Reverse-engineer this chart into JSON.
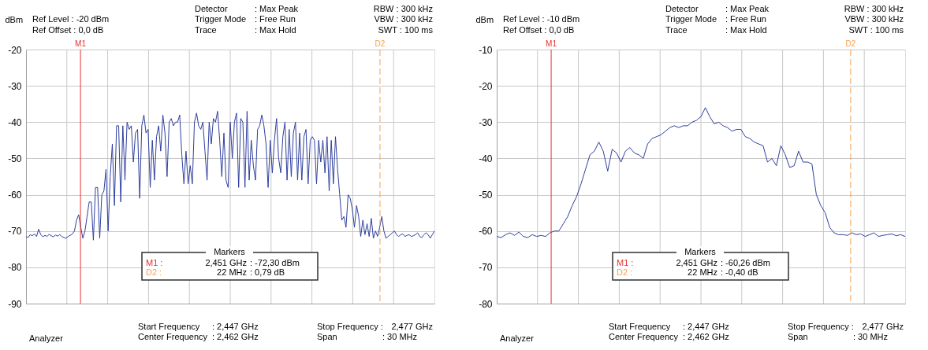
{
  "chart_data": [
    {
      "type": "line",
      "ylabel": "dBm",
      "ylim": [
        -90,
        -20
      ],
      "yticks": [
        -90,
        -80,
        -70,
        -60,
        -50,
        -40,
        -30,
        -20
      ],
      "grid": true,
      "tick_labels": "y",
      "line_style": "solid",
      "marker": "none",
      "categories": [
        null,
        null,
        null,
        null,
        null,
        null,
        null,
        null,
        null,
        null,
        null,
        null,
        null,
        null,
        null,
        null,
        null,
        null,
        null,
        null,
        null,
        null,
        null,
        null,
        null,
        null,
        null,
        null,
        null,
        null,
        null,
        null,
        null,
        null,
        null,
        null,
        null,
        null,
        null,
        null,
        null,
        null,
        null,
        null,
        null,
        null,
        null,
        null,
        null,
        null,
        null,
        null,
        null,
        null,
        null,
        null,
        null,
        null,
        null,
        null,
        null,
        null,
        null,
        null,
        null,
        null,
        null,
        null,
        null,
        null,
        null,
        null,
        null,
        null,
        null,
        null,
        null,
        null,
        null,
        null,
        null,
        null,
        null,
        null,
        null,
        null,
        null,
        null,
        null,
        null,
        null,
        null,
        null,
        null,
        null,
        null,
        null,
        null,
        null,
        null,
        null,
        null,
        null,
        null,
        null,
        null,
        null,
        null,
        null,
        null,
        null,
        null,
        null,
        null,
        null,
        null,
        null,
        null,
        null,
        null,
        null,
        null,
        null,
        null,
        null,
        null,
        null,
        null,
        null,
        null,
        null,
        null,
        null,
        null,
        null,
        null,
        null,
        null,
        null,
        null,
        null,
        null,
        null,
        null,
        null,
        null,
        null,
        null,
        null,
        null,
        null,
        null,
        null,
        null,
        null,
        null,
        null,
        null,
        null,
        null,
        null,
        null,
        null,
        null,
        null,
        null,
        null,
        null,
        null,
        null,
        null,
        null,
        null,
        null,
        null,
        null,
        null,
        null,
        null,
        null,
        null,
        null,
        null,
        null,
        null,
        null,
        null,
        null,
        null,
        null,
        null,
        null,
        null,
        null,
        null
      ],
      "series": [
        {
          "color": "#2f3f9e",
          "values": [
            -71.5,
            -71.8,
            -71,
            -71.3,
            -70.8,
            -71.5,
            -69.5,
            -71,
            -71.6,
            -71.2,
            -71.5,
            -70.9,
            -71.3,
            -71.6,
            -71.1,
            -71.4,
            -71,
            -71.5,
            -71.8,
            -72,
            -71.5,
            -71.2,
            -70.8,
            -70,
            -67,
            -65.5,
            -69,
            -72,
            -70,
            -66,
            -62,
            -62,
            -72.5,
            -58,
            -58,
            -72,
            -60,
            -59,
            -53,
            -70,
            -55,
            -46,
            -63,
            -41,
            -41,
            -62,
            -41,
            -56,
            -40,
            -42,
            -41,
            -51,
            -43,
            -42,
            -61,
            -41,
            -38,
            -43,
            -42,
            -58,
            -45,
            -56,
            -44,
            -41,
            -48,
            -38,
            -43,
            -55,
            -40,
            -39,
            -41,
            -40,
            -40,
            -38,
            -49,
            -57,
            -48,
            -57,
            -52,
            -57,
            -40,
            -37.5,
            -41,
            -42,
            -40,
            -48,
            -56,
            -40,
            -46,
            -39,
            -40,
            -37,
            -45,
            -55,
            -43,
            -56,
            -58,
            -40,
            -50,
            -40,
            -37.5,
            -58,
            -39,
            -40,
            -58,
            -37,
            -56,
            -45,
            -52,
            -56,
            -42,
            -41,
            -38,
            -41,
            -46,
            -58,
            -45,
            -54,
            -45,
            -39,
            -50,
            -54,
            -44,
            -40,
            -56,
            -42,
            -55,
            -43,
            -40,
            -56,
            -43,
            -56,
            -44,
            -42,
            -57,
            -45,
            -44,
            -45,
            -57,
            -45,
            -51,
            -45,
            -54,
            -44,
            -59,
            -45,
            -57,
            -44,
            -53,
            -60,
            -67,
            -66,
            -69,
            -60,
            -61,
            -64,
            -69,
            -63,
            -66,
            -71.5,
            -67,
            -71,
            -68,
            -71.5,
            -66.5,
            -72,
            -70,
            -71.5,
            -69,
            -66,
            -70,
            -72,
            -71.5,
            -71,
            -70.5,
            -70,
            -71,
            -71.5,
            -71,
            -70.8,
            -71.5,
            -71.2,
            -71,
            -71.5,
            -71.3,
            -71,
            -70.5,
            -71.5,
            -71.8,
            -71,
            -70.5,
            -71,
            -72,
            -71,
            -70
          ]
        }
      ],
      "annotations": [
        "Ref Level : -20   dBm",
        "Ref Offset :   0,0 dB",
        "Detector",
        "Trigger Mode",
        "Trace",
        ": Max Peak",
        ": Free Run",
        ": Max Hold",
        "RBW : 300 kHz",
        "VBW : 300 kHz",
        "SWT : 100 ms",
        "Markers",
        "M1 :",
        "2,451 GHz",
        ": -72,30 dBm",
        "D2 :",
        "22 MHz",
        ":  0,79 dB",
        "Analyzer",
        "Start Frequency",
        "Center Frequency",
        ": 2,447 GHz",
        ": 2,462 GHz",
        "Stop Frequency :",
        "Span",
        "2,477 GHz",
        ": 30      MHz",
        "M1",
        "D2"
      ]
    },
    {
      "type": "line",
      "ylabel": "dBm",
      "ylim": [
        -80,
        -10
      ],
      "yticks": [
        -80,
        -70,
        -60,
        -50,
        -40,
        -30,
        -20,
        -10
      ],
      "grid": true,
      "tick_labels": "y",
      "line_style": "solid",
      "marker": "none",
      "categories": [
        null,
        null,
        null,
        null,
        null,
        null,
        null,
        null,
        null,
        null,
        null,
        null,
        null,
        null,
        null,
        null,
        null,
        null,
        null,
        null,
        null,
        null,
        null,
        null,
        null,
        null,
        null,
        null,
        null,
        null,
        null,
        null,
        null,
        null,
        null,
        null,
        null,
        null,
        null,
        null,
        null,
        null,
        null,
        null,
        null,
        null,
        null,
        null,
        null,
        null,
        null,
        null,
        null,
        null,
        null,
        null,
        null,
        null,
        null,
        null,
        null,
        null,
        null,
        null,
        null,
        null,
        null,
        null,
        null,
        null,
        null,
        null,
        null,
        null,
        null,
        null,
        null,
        null,
        null,
        null,
        null,
        null,
        null,
        null,
        null,
        null,
        null,
        null,
        null,
        null,
        null,
        null,
        null
      ],
      "series": [
        {
          "color": "#2f3f9e",
          "values": [
            -61.5,
            -61.8,
            -61,
            -60.5,
            -61.2,
            -60.3,
            -61.5,
            -61.8,
            -61,
            -61.5,
            -61.2,
            -61.5,
            -60.5,
            -60,
            -60,
            -58,
            -56,
            -53,
            -50.5,
            -47,
            -43,
            -39,
            -38,
            -35.5,
            -38,
            -43.5,
            -37.5,
            -38.5,
            -41,
            -38,
            -37,
            -38.5,
            -39,
            -40,
            -36,
            -34.5,
            -34,
            -33.5,
            -32.5,
            -31.5,
            -31,
            -31.5,
            -31,
            -31,
            -30,
            -29.5,
            -28.5,
            -26,
            -28.5,
            -30.5,
            -30,
            -31,
            -31.5,
            -32.5,
            -32,
            -32,
            -34,
            -34.5,
            -35.5,
            -36,
            -36.5,
            -41,
            -40,
            -42,
            -36.5,
            -39,
            -42.5,
            -42,
            -38,
            -41,
            -41,
            -41.5,
            -50,
            -53,
            -55,
            -59,
            -60.5,
            -61,
            -61,
            -61.2,
            -60.5,
            -61,
            -60.8,
            -61.5,
            -61,
            -60.5,
            -61.5,
            -61.2,
            -61,
            -60.8,
            -61.3,
            -61,
            -61.5
          ]
        }
      ],
      "annotations": [
        "Ref Level : -10   dBm",
        "Ref Offset :   0,0 dB",
        "Detector",
        "Trigger Mode",
        "Trace",
        ": Max Peak",
        ": Free Run",
        ": Max Hold",
        "RBW : 300 kHz",
        "VBW : 300 kHz",
        "SWT : 100 ms",
        "Markers",
        "M1 :",
        "2,451 GHz",
        ": -60,26 dBm",
        "D2 :",
        "22 MHz",
        ":  -0,40 dB",
        "Analyzer",
        "Start Frequency",
        "Center Frequency",
        ": 2,447 GHz",
        ": 2,462 GHz",
        "Stop Frequency :",
        "Span",
        "2,477 GHz",
        ": 30      MHz",
        "M1",
        "D2"
      ]
    }
  ]
}
